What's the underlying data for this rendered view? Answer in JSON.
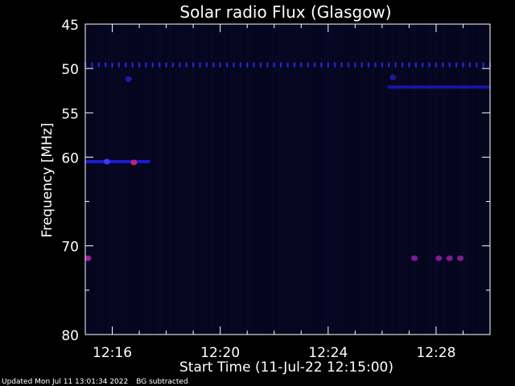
{
  "chart_data": {
    "type": "heatmap",
    "title": "Solar radio Flux (Glasgow)",
    "xlabel": "Start Time (11-Jul-22 12:15:00)",
    "ylabel": "Frequency [MHz]",
    "x_range_minutes": [
      0,
      15
    ],
    "x_ticks": [
      {
        "minute": 1,
        "label": "12:16"
      },
      {
        "minute": 5,
        "label": "12:20"
      },
      {
        "minute": 9,
        "label": "12:24"
      },
      {
        "minute": 13,
        "label": "12:28"
      }
    ],
    "y_range": [
      45,
      80
    ],
    "y_reversed": true,
    "y_ticks": [
      45,
      50,
      55,
      60,
      70,
      80
    ],
    "background_color": "#05051c",
    "features": [
      {
        "kind": "dotted-band",
        "freq": 49.6,
        "x_start": 0,
        "x_end": 15,
        "color": "#2a2ae0",
        "intensity": 0.85
      },
      {
        "kind": "band",
        "freq": 52.1,
        "x_start": 11.2,
        "x_end": 15,
        "color": "#1c1cc8",
        "intensity": 0.8
      },
      {
        "kind": "band",
        "freq": 60.5,
        "x_start": 0,
        "x_end": 2.4,
        "color": "#1e1ee6",
        "intensity": 0.9
      },
      {
        "kind": "blob",
        "freq": 60.5,
        "x": 0.8,
        "color": "#3a3aff",
        "intensity": 1.0
      },
      {
        "kind": "blob",
        "freq": 60.6,
        "x": 1.8,
        "color": "#c0207a",
        "intensity": 1.0
      },
      {
        "kind": "blob",
        "freq": 71.4,
        "x": 0.1,
        "color": "#b020b0",
        "intensity": 0.9
      },
      {
        "kind": "blob",
        "freq": 71.4,
        "x": 12.2,
        "color": "#9a20b0",
        "intensity": 0.8
      },
      {
        "kind": "blob",
        "freq": 71.4,
        "x": 13.1,
        "color": "#9a20b0",
        "intensity": 0.8
      },
      {
        "kind": "blob",
        "freq": 71.4,
        "x": 13.5,
        "color": "#9a20b0",
        "intensity": 0.8
      },
      {
        "kind": "blob",
        "freq": 71.4,
        "x": 13.9,
        "color": "#9a20b0",
        "intensity": 0.8
      },
      {
        "kind": "blob",
        "freq": 51.2,
        "x": 1.6,
        "color": "#2a2ae0",
        "intensity": 0.7
      },
      {
        "kind": "blob",
        "freq": 51.0,
        "x": 11.4,
        "color": "#2a2ae0",
        "intensity": 0.6
      }
    ]
  },
  "footer": {
    "updated": "Updated Mon Jul 11 13:01:34 2022",
    "note": "BG subtracted"
  }
}
